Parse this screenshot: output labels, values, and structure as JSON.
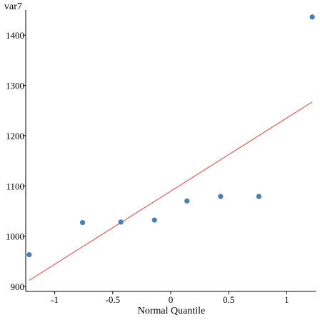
{
  "chart_data": {
    "type": "scatter",
    "title": "",
    "xlabel": "Normal Quantile",
    "ylabel": "var7",
    "xlim": [
      -1.25,
      1.25
    ],
    "ylim": [
      890,
      1450
    ],
    "x_ticks": [
      -1,
      -0.5,
      0,
      0.5,
      1
    ],
    "x_tick_labels": [
      "-1",
      "-0.5",
      "0",
      "0.5",
      "1"
    ],
    "y_ticks": [
      900,
      1000,
      1100,
      1200,
      1300,
      1400
    ],
    "y_tick_labels": [
      "900",
      "1000",
      "1100",
      "1200",
      "1300",
      "1400"
    ],
    "grid": false,
    "points": [
      {
        "x": -1.22,
        "y": 963
      },
      {
        "x": -0.76,
        "y": 1027
      },
      {
        "x": -0.43,
        "y": 1028
      },
      {
        "x": -0.14,
        "y": 1032
      },
      {
        "x": 0.14,
        "y": 1070
      },
      {
        "x": 0.43,
        "y": 1079
      },
      {
        "x": 0.76,
        "y": 1079
      },
      {
        "x": 1.22,
        "y": 1436
      }
    ],
    "reference_line": {
      "x": [
        -1.22,
        1.22
      ],
      "y": [
        912,
        1267
      ]
    },
    "point_color": "#4a7ebb",
    "line_color": "#e06060"
  }
}
